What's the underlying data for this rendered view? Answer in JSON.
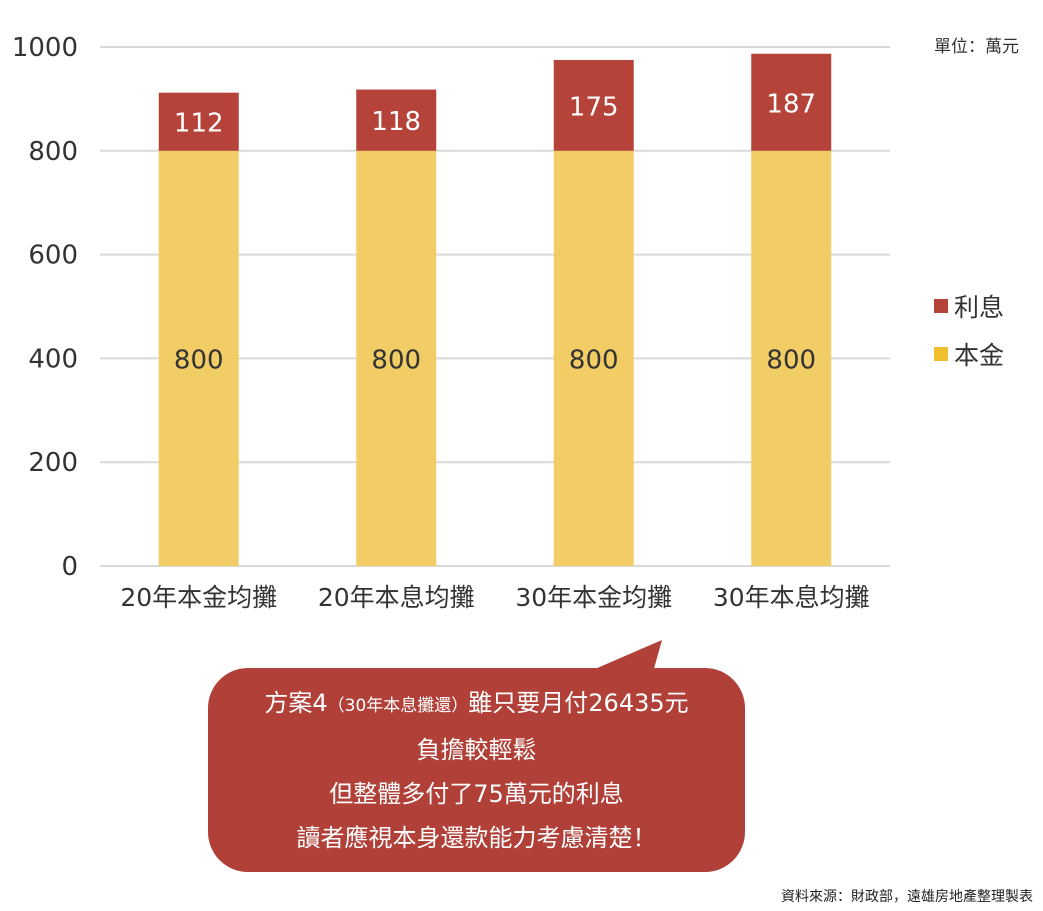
{
  "chart_data": {
    "type": "bar",
    "stacked": true,
    "categories": [
      "20年本金均攤",
      "20年本息均攤",
      "30年本金均攤",
      "30年本息均攤"
    ],
    "series": [
      {
        "name": "本金",
        "values": [
          800,
          800,
          800,
          800
        ],
        "color": "#f2cd65"
      },
      {
        "name": "利息",
        "values": [
          112,
          118,
          175,
          187
        ],
        "color": "#b5433a"
      }
    ],
    "ylim": [
      0,
      1000
    ],
    "yticks": [
      0,
      200,
      400,
      600,
      800,
      1000
    ],
    "unit": "單位：萬元",
    "legend": [
      {
        "label": "利息",
        "color": "#b5433a"
      },
      {
        "label": "本金",
        "color": "#f0bf2d"
      }
    ],
    "legend_position": "right",
    "grid": true
  },
  "callout": {
    "line1_prefix": "方案4",
    "line1_small": "（30年本息攤還）",
    "line1_suffix": "雖只要月付26435元",
    "line2": "負擔較輕鬆",
    "line3": "但整體多付了75萬元的利息",
    "line4": "讀者應視本身還款能力考慮清楚！",
    "color": "#b04038"
  },
  "source": "資料來源：財政部，遠雄房地產整理製表"
}
